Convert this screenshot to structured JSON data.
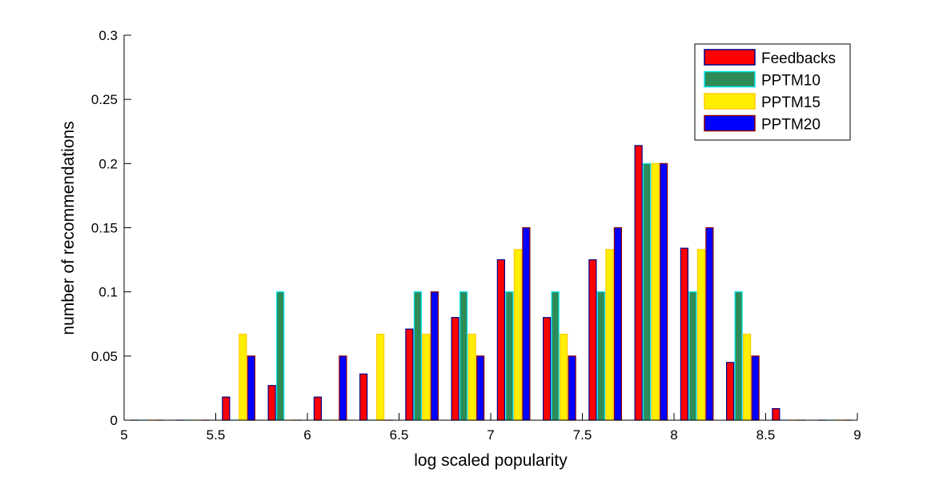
{
  "chart_data": {
    "type": "bar",
    "title": "",
    "xlabel": "log scaled popularity",
    "ylabel": "number of recommendations",
    "xlim": [
      5,
      9
    ],
    "ylim": [
      0,
      0.3
    ],
    "xticks": [
      "5",
      "5.5",
      "6",
      "6.5",
      "7",
      "7.5",
      "8",
      "8.5",
      "9"
    ],
    "yticks": [
      "0",
      "0.05",
      "0.1",
      "0.15",
      "0.2",
      "0.25",
      "0.3"
    ],
    "grid": false,
    "legend_position": "top-right",
    "bin_centers": [
      5.125,
      5.375,
      5.625,
      5.875,
      6.125,
      6.375,
      6.625,
      6.875,
      7.125,
      7.375,
      7.625,
      7.875,
      8.125,
      8.375,
      8.625,
      8.875
    ],
    "series": [
      {
        "name": "Feedbacks",
        "fill": "#ff0000",
        "edge": "#00008b",
        "values": [
          0,
          0,
          0.018,
          0.027,
          0.018,
          0.036,
          0.071,
          0.08,
          0.125,
          0.08,
          0.125,
          0.214,
          0.134,
          0.045,
          0.009,
          0
        ]
      },
      {
        "name": "PPTM10",
        "fill": "#2e8b57",
        "edge": "#00e5ee",
        "values": [
          0,
          0,
          0,
          0.1,
          0,
          0,
          0.1,
          0.1,
          0.1,
          0.1,
          0.1,
          0.2,
          0.1,
          0.1,
          0,
          0
        ]
      },
      {
        "name": "PPTM15",
        "fill": "#ffee00",
        "edge": "#ffcc00",
        "values": [
          0,
          0,
          0.067,
          0,
          0,
          0.067,
          0.067,
          0.067,
          0.133,
          0.067,
          0.133,
          0.2,
          0.133,
          0.067,
          0,
          0
        ]
      },
      {
        "name": "PPTM20",
        "fill": "#0000ff",
        "edge": "#8b0000",
        "values": [
          0,
          0,
          0.05,
          0,
          0.05,
          0,
          0.1,
          0.05,
          0.15,
          0.05,
          0.15,
          0.2,
          0.15,
          0.05,
          0,
          0
        ]
      }
    ]
  }
}
